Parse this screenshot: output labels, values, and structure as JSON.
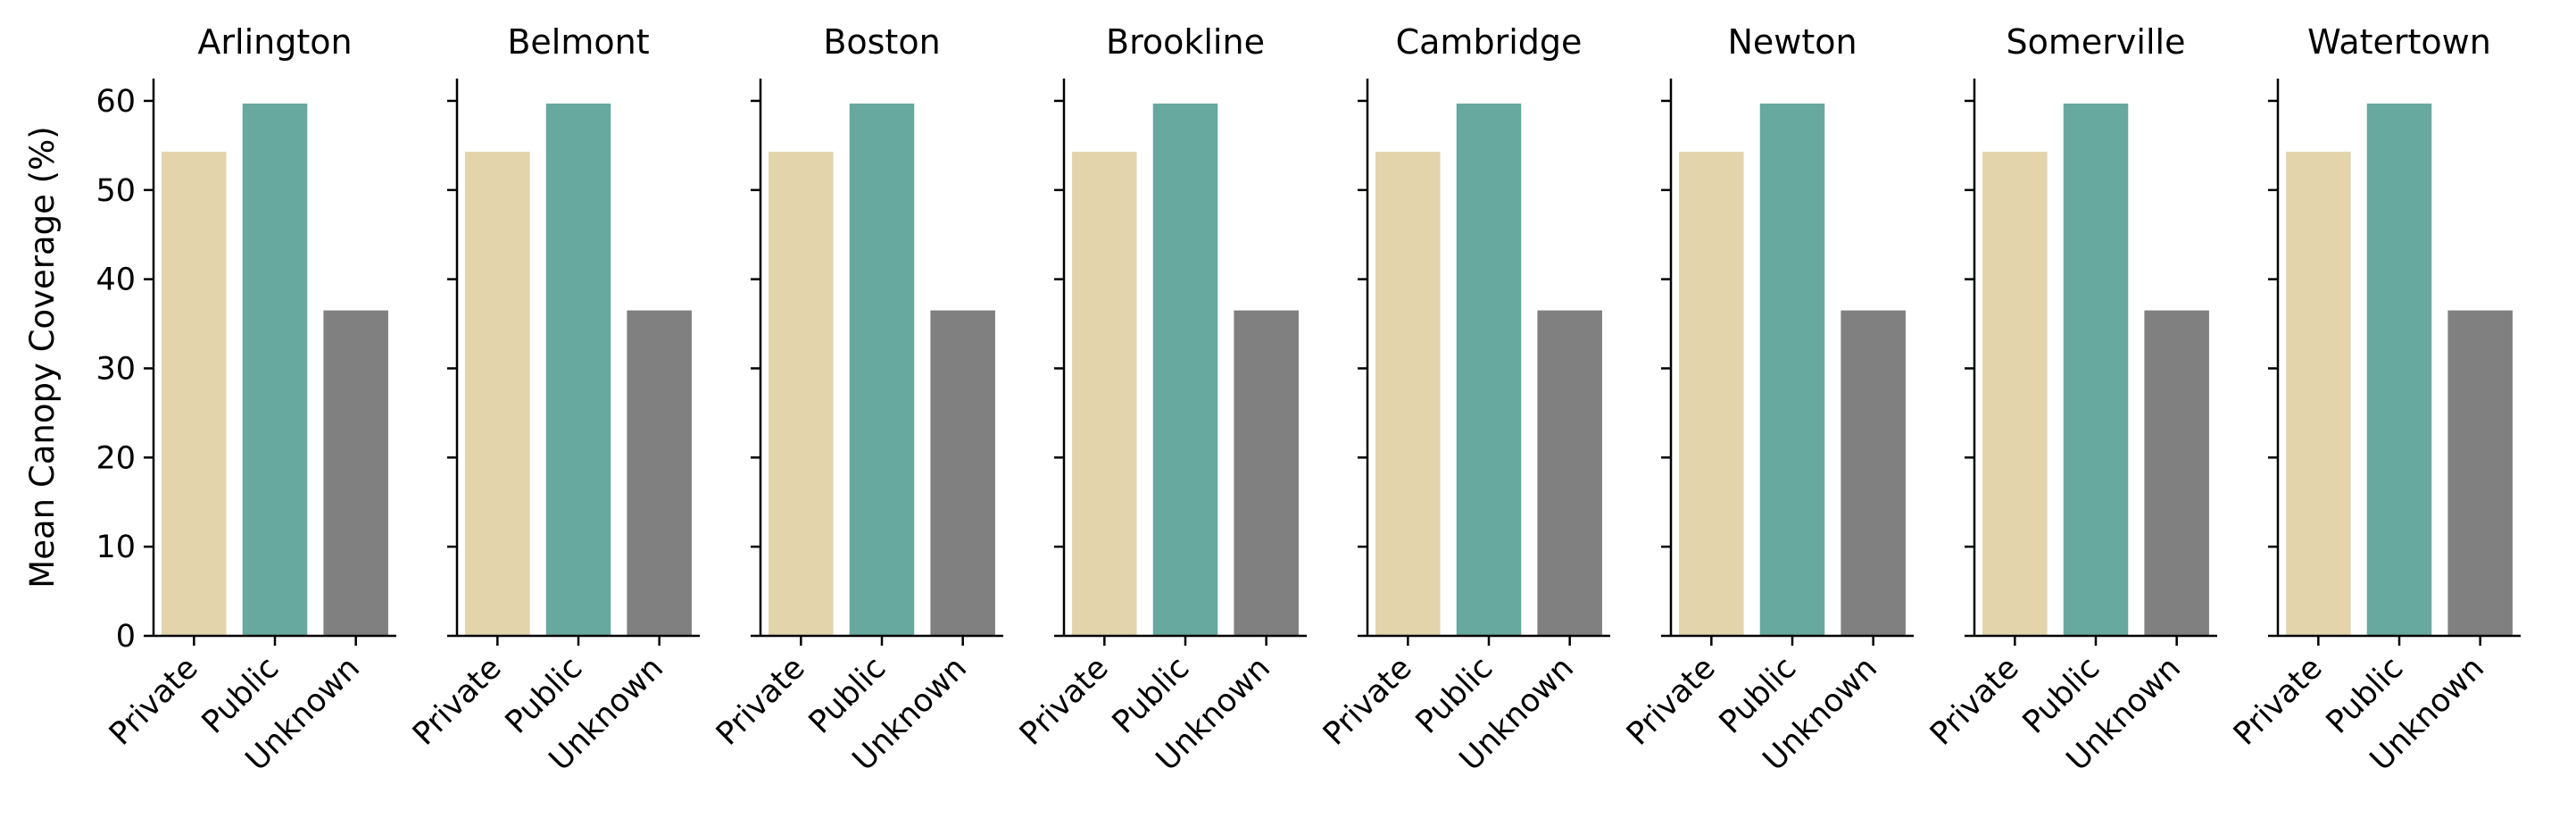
{
  "chart_data": {
    "type": "bar",
    "ylabel": "Mean Canopy Coverage (%)",
    "ylim": [
      0,
      62.5
    ],
    "yticks": [
      0,
      10,
      20,
      30,
      40,
      50,
      60
    ],
    "categories": [
      "Private",
      "Public",
      "Unknown"
    ],
    "category_colors": [
      "#e3d4ab",
      "#67a89f",
      "#808080"
    ],
    "grid": false,
    "shared_y": true,
    "panels": [
      {
        "title": "Arlington",
        "values": [
          54.3,
          59.7,
          36.5
        ]
      },
      {
        "title": "Belmont",
        "values": [
          54.3,
          59.7,
          36.5
        ]
      },
      {
        "title": "Boston",
        "values": [
          54.3,
          59.7,
          36.5
        ]
      },
      {
        "title": "Brookline",
        "values": [
          54.3,
          59.7,
          36.5
        ]
      },
      {
        "title": "Cambridge",
        "values": [
          54.3,
          59.7,
          36.5
        ]
      },
      {
        "title": "Newton",
        "values": [
          54.3,
          59.7,
          36.5
        ]
      },
      {
        "title": "Somerville",
        "values": [
          54.3,
          59.7,
          36.5
        ]
      },
      {
        "title": "Watertown",
        "values": [
          54.3,
          59.7,
          36.5
        ]
      }
    ]
  }
}
